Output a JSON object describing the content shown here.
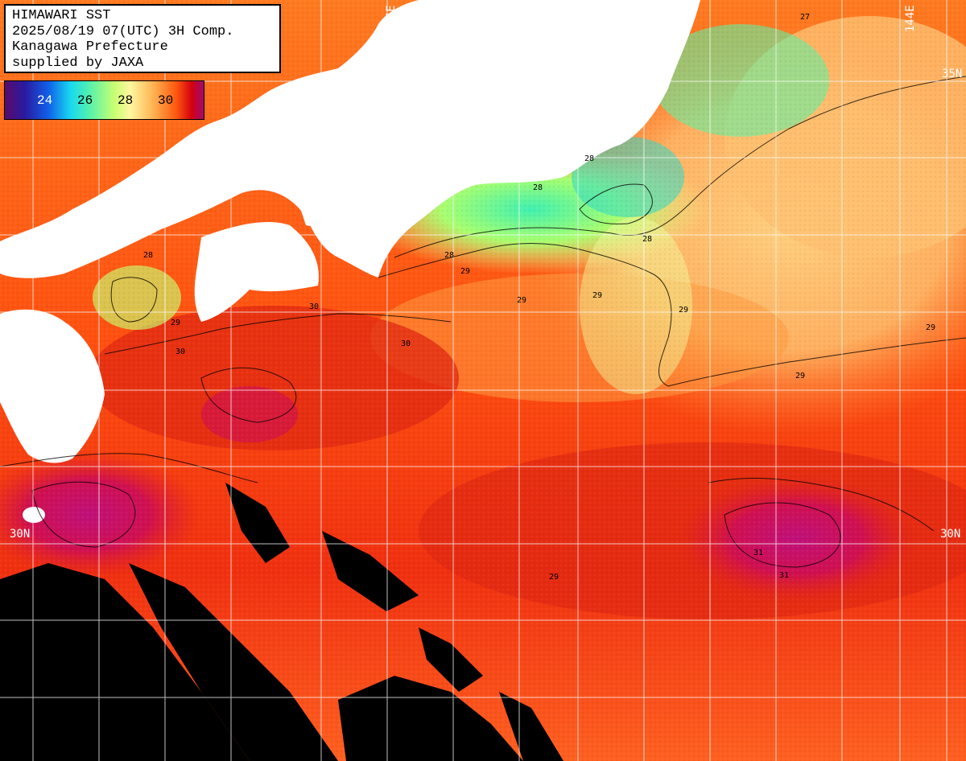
{
  "info": {
    "line1": "HIMAWARI SST",
    "line2": "2025/08/19 07(UTC) 3H Comp.",
    "line3": "Kanagawa Prefecture",
    "line4": "supplied by JAXA"
  },
  "legend": {
    "ticks": [
      "24",
      "26",
      "28",
      "30"
    ]
  },
  "grid_labels": {
    "lon_135": "135E",
    "lon_144": "144E",
    "lat_35": "35N",
    "lat_30_left": "30N",
    "lat_30_right": "30N"
  },
  "contour_labels": [
    "28",
    "29",
    "29",
    "30",
    "30",
    "30",
    "28",
    "28",
    "29",
    "29",
    "31",
    "31",
    "29",
    "29",
    "28",
    "27",
    "29",
    "28",
    "29"
  ],
  "colors": {
    "land": "#ffffff",
    "no_data": "#000000",
    "grid": "#ffffff",
    "warm": "#ff5a10",
    "hot": "#d40010",
    "very_hot": "#b0107a",
    "mild": "#ffb050",
    "cool": "#d8ff80",
    "cold": "#40f0c0"
  }
}
